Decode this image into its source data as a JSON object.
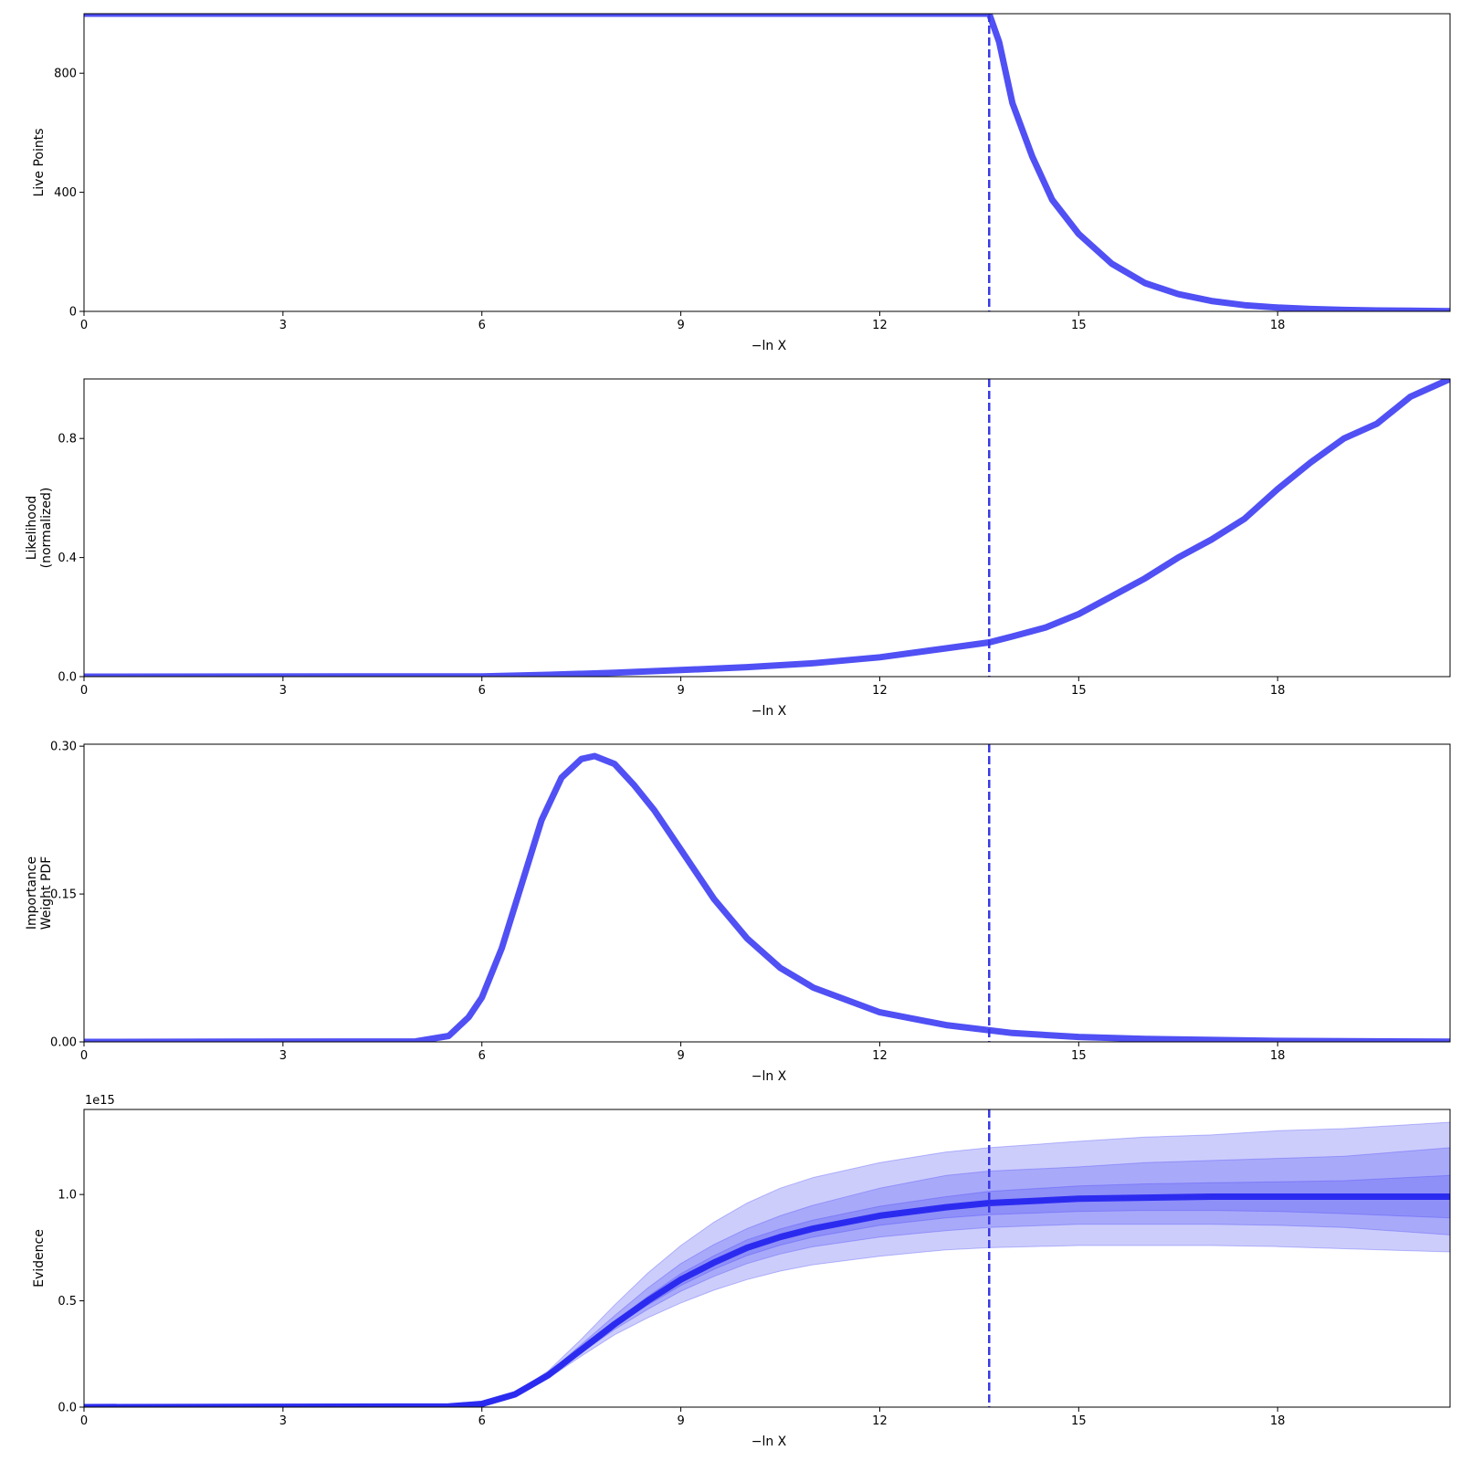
{
  "chart_data": [
    {
      "type": "line",
      "xlabel": "−ln X",
      "ylabel": [
        "Live Points"
      ],
      "xlim": [
        0,
        20.6
      ],
      "ylim": [
        0,
        1000
      ],
      "xticks": [
        0,
        3,
        6,
        9,
        12,
        15,
        18
      ],
      "xtick_labels": [
        "0",
        "3",
        "6",
        "9",
        "12",
        "15",
        "18"
      ],
      "yticks": [
        0,
        400,
        800
      ],
      "ytick_labels": [
        "0",
        "400",
        "800"
      ],
      "vline_x": 13.65,
      "series": [
        {
          "x": [
            0,
            13.65,
            13.8,
            14.0,
            14.3,
            14.6,
            15.0,
            15.5,
            16.0,
            16.5,
            17.0,
            17.5,
            18.0,
            18.5,
            19.0,
            19.5,
            20.0,
            20.6
          ],
          "y": [
            1000,
            1000,
            905,
            700,
            520,
            375,
            260,
            160,
            95,
            58,
            35,
            21,
            13,
            8,
            5,
            3,
            2,
            1
          ]
        }
      ],
      "grid": false
    },
    {
      "type": "line",
      "xlabel": "−ln X",
      "ylabel": [
        "Likelihood",
        "(normalized)"
      ],
      "xlim": [
        0,
        20.6
      ],
      "ylim": [
        0,
        1.0
      ],
      "xticks": [
        0,
        3,
        6,
        9,
        12,
        15,
        18
      ],
      "xtick_labels": [
        "0",
        "3",
        "6",
        "9",
        "12",
        "15",
        "18"
      ],
      "yticks": [
        0,
        0.4,
        0.8
      ],
      "ytick_labels": [
        "0.0",
        "0.4",
        "0.8"
      ],
      "vline_x": 13.65,
      "series": [
        {
          "x": [
            0,
            6,
            7,
            8,
            9,
            10,
            11,
            12,
            13,
            13.65,
            14,
            14.5,
            15,
            15.5,
            16,
            16.5,
            17,
            17.5,
            18,
            18.5,
            19,
            19.5,
            20,
            20.6
          ],
          "y": [
            0,
            0.001,
            0.006,
            0.013,
            0.022,
            0.032,
            0.045,
            0.065,
            0.095,
            0.115,
            0.135,
            0.165,
            0.21,
            0.27,
            0.33,
            0.4,
            0.46,
            0.53,
            0.63,
            0.72,
            0.8,
            0.85,
            0.94,
            1.0
          ]
        }
      ],
      "grid": false
    },
    {
      "type": "line",
      "xlabel": "−ln X",
      "ylabel": [
        "Importance",
        "Weight PDF"
      ],
      "xlim": [
        0,
        20.6
      ],
      "ylim": [
        0,
        0.302
      ],
      "xticks": [
        0,
        3,
        6,
        9,
        12,
        15,
        18
      ],
      "xtick_labels": [
        "0",
        "3",
        "6",
        "9",
        "12",
        "15",
        "18"
      ],
      "yticks": [
        0,
        0.15,
        0.3
      ],
      "ytick_labels": [
        "0.00",
        "0.15",
        "0.30"
      ],
      "vline_x": 13.65,
      "series": [
        {
          "x": [
            0,
            5.0,
            5.5,
            5.8,
            6.0,
            6.3,
            6.6,
            6.9,
            7.2,
            7.5,
            7.7,
            8.0,
            8.3,
            8.6,
            9.0,
            9.5,
            10.0,
            10.5,
            11.0,
            12.0,
            13.0,
            14.0,
            15.0,
            16.0,
            18.0,
            20.6
          ],
          "y": [
            0,
            0.0005,
            0.006,
            0.025,
            0.045,
            0.095,
            0.16,
            0.225,
            0.268,
            0.287,
            0.29,
            0.282,
            0.26,
            0.235,
            0.195,
            0.145,
            0.105,
            0.075,
            0.055,
            0.03,
            0.017,
            0.009,
            0.005,
            0.003,
            0.001,
            0.0002
          ]
        }
      ],
      "grid": false
    },
    {
      "type": "area",
      "xlabel": "−ln X",
      "ylabel": [
        "Evidence"
      ],
      "offset_label": "1e15",
      "xlim": [
        0,
        20.6
      ],
      "ylim": [
        0,
        1.4
      ],
      "xticks": [
        0,
        3,
        6,
        9,
        12,
        15,
        18
      ],
      "xtick_labels": [
        "0",
        "3",
        "6",
        "9",
        "12",
        "15",
        "18"
      ],
      "yticks": [
        0,
        0.5,
        1.0
      ],
      "ytick_labels": [
        "0.0",
        "0.5",
        "1.0"
      ],
      "vline_x": 13.65,
      "x": [
        0,
        5.5,
        6.0,
        6.5,
        7.0,
        7.5,
        8.0,
        8.5,
        9.0,
        9.5,
        10.0,
        10.5,
        11.0,
        12.0,
        13.0,
        13.65,
        15.0,
        16.0,
        17.0,
        18.0,
        19.0,
        20.6
      ],
      "series": [
        {
          "values": [
            0,
            0.003,
            0.015,
            0.06,
            0.15,
            0.27,
            0.39,
            0.5,
            0.6,
            0.68,
            0.75,
            0.8,
            0.84,
            0.9,
            0.94,
            0.96,
            0.98,
            0.985,
            0.99,
            0.99,
            0.99,
            0.99
          ]
        }
      ],
      "bands": [
        {
          "lower": [
            0,
            0.003,
            0.014,
            0.055,
            0.135,
            0.24,
            0.34,
            0.42,
            0.49,
            0.55,
            0.6,
            0.64,
            0.67,
            0.71,
            0.74,
            0.75,
            0.76,
            0.76,
            0.76,
            0.755,
            0.745,
            0.73
          ],
          "upper": [
            0,
            0.003,
            0.017,
            0.068,
            0.17,
            0.32,
            0.48,
            0.63,
            0.76,
            0.87,
            0.96,
            1.03,
            1.08,
            1.15,
            1.2,
            1.22,
            1.25,
            1.27,
            1.28,
            1.3,
            1.31,
            1.34
          ]
        },
        {
          "lower": [
            0,
            0.003,
            0.014,
            0.057,
            0.14,
            0.255,
            0.365,
            0.46,
            0.545,
            0.615,
            0.675,
            0.72,
            0.755,
            0.8,
            0.83,
            0.845,
            0.86,
            0.86,
            0.86,
            0.855,
            0.845,
            0.81
          ],
          "upper": [
            0,
            0.003,
            0.016,
            0.064,
            0.16,
            0.295,
            0.43,
            0.56,
            0.675,
            0.765,
            0.84,
            0.9,
            0.95,
            1.03,
            1.09,
            1.11,
            1.13,
            1.15,
            1.16,
            1.17,
            1.18,
            1.22
          ]
        },
        {
          "lower": [
            0,
            0.003,
            0.015,
            0.058,
            0.145,
            0.262,
            0.378,
            0.48,
            0.572,
            0.648,
            0.713,
            0.762,
            0.8,
            0.855,
            0.89,
            0.905,
            0.92,
            0.925,
            0.925,
            0.92,
            0.91,
            0.89
          ],
          "upper": [
            0,
            0.003,
            0.015,
            0.062,
            0.155,
            0.278,
            0.402,
            0.52,
            0.628,
            0.712,
            0.787,
            0.838,
            0.88,
            0.945,
            0.99,
            1.015,
            1.04,
            1.05,
            1.055,
            1.06,
            1.065,
            1.09
          ]
        }
      ],
      "grid": false
    }
  ]
}
